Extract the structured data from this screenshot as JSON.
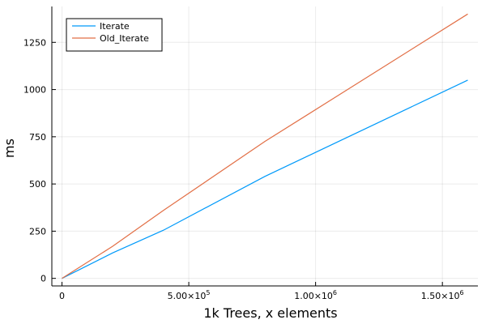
{
  "chart_data": {
    "type": "line",
    "xlabel": "1k Trees, x elements",
    "ylabel": "ms",
    "xlim": [
      -40000,
      1640000
    ],
    "ylim": [
      -40,
      1440
    ],
    "xticks": [
      {
        "value": 0,
        "base": "0",
        "exp": ""
      },
      {
        "value": 500000,
        "base": "5.00×10",
        "exp": "5"
      },
      {
        "value": 1000000,
        "base": "1.00×10",
        "exp": "6"
      },
      {
        "value": 1500000,
        "base": "1.50×10",
        "exp": "6"
      }
    ],
    "yticks": [
      {
        "value": 0,
        "label": "0"
      },
      {
        "value": 250,
        "label": "250"
      },
      {
        "value": 500,
        "label": "500"
      },
      {
        "value": 750,
        "label": "750"
      },
      {
        "value": 1000,
        "label": "1000"
      },
      {
        "value": 1250,
        "label": "1250"
      }
    ],
    "grid": true,
    "legend_position": "top-left",
    "series": [
      {
        "name": "Iterate",
        "color": "#009AFA",
        "points": [
          [
            0,
            0
          ],
          [
            200000,
            135
          ],
          [
            400000,
            255
          ],
          [
            800000,
            540
          ],
          [
            1600000,
            1050
          ]
        ]
      },
      {
        "name": "Old_Iterate",
        "color": "#E26F46",
        "points": [
          [
            0,
            0
          ],
          [
            200000,
            170
          ],
          [
            400000,
            360
          ],
          [
            800000,
            725
          ],
          [
            1600000,
            1400
          ]
        ]
      }
    ]
  }
}
